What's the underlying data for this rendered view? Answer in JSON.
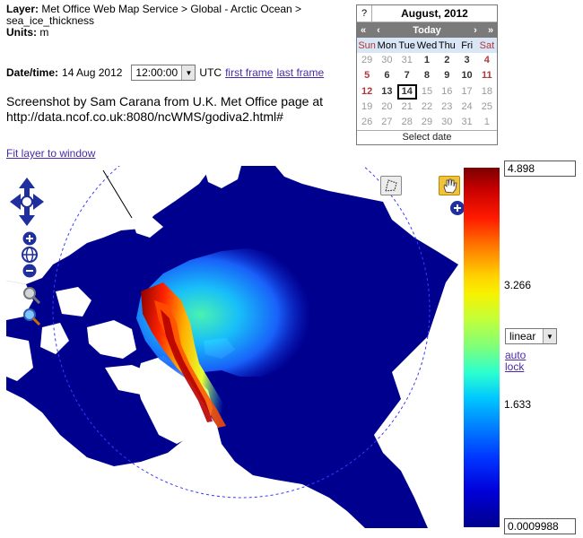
{
  "layer_info": {
    "layer_label": "Layer:",
    "layer_value": "Met Office Web Map Service > Global - Arctic Ocean > sea_ice_thickness",
    "units_label": "Units:",
    "units_value": "m"
  },
  "datetime": {
    "label": "Date/time:",
    "date": "14 Aug 2012",
    "time_value": "12:00:00",
    "zone": "UTC",
    "first_frame": "first frame",
    "last_frame": "last frame"
  },
  "credit": {
    "line1": "Screenshot by Sam Carana from U.K. Met Office page at",
    "line2": "http://data.ncof.co.uk:8080/ncWMS/godiva2.html#"
  },
  "fit_link": "Fit layer to window",
  "calendar": {
    "help": "?",
    "month_title": "August, 2012",
    "nav": [
      "«",
      "‹",
      "Today",
      "›",
      "»"
    ],
    "weekdays": [
      "Sun",
      "Mon",
      "Tue",
      "Wed",
      "Thu",
      "Fri",
      "Sat"
    ],
    "weeks": [
      [
        "29",
        "30",
        "31",
        "1",
        "2",
        "3",
        "4"
      ],
      [
        "5",
        "6",
        "7",
        "8",
        "9",
        "10",
        "11"
      ],
      [
        "12",
        "13",
        "14",
        "15",
        "16",
        "17",
        "18"
      ],
      [
        "19",
        "20",
        "21",
        "22",
        "23",
        "24",
        "25"
      ],
      [
        "26",
        "27",
        "28",
        "29",
        "30",
        "31",
        "1"
      ]
    ],
    "footer": "Select date"
  },
  "scale": {
    "max": "4.898",
    "tick_high": "3.266",
    "tick_low": "1.633",
    "min": "0.0009988",
    "type": "linear",
    "auto": "auto",
    "lock": "lock"
  },
  "icons": {
    "pan": "pan-arrows-icon",
    "zoom_in": "zoom-in-icon",
    "zoom_world": "zoom-world-icon",
    "zoom_out": "zoom-out-icon",
    "magnify": "magnifier-icon",
    "box": "box-select-icon",
    "hand": "hand-icon",
    "expand": "expand-plus-icon"
  },
  "colors": {
    "ocean": "#00008f",
    "land": "#ffffff",
    "link": "#4b2aa8",
    "control_blue": "#1f2f9e"
  }
}
